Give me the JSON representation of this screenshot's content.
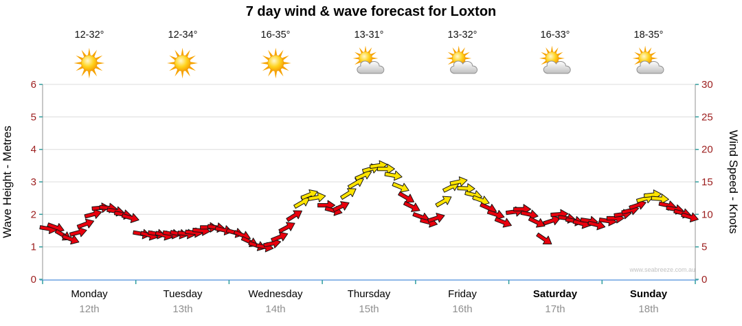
{
  "title": "7 day wind & wave forecast for Loxton",
  "watermark": "www.seabreeze.com.au",
  "axes": {
    "left_label": "Wave Height - Metres",
    "right_label": "Wind Speed - Knots",
    "left_ticks": [
      0,
      1,
      2,
      3,
      4,
      5,
      6
    ],
    "right_ticks": [
      0,
      5,
      10,
      15,
      20,
      25,
      30
    ]
  },
  "days": [
    {
      "name": "Monday",
      "date": "12th",
      "temp": "12-32°",
      "icon": "sun",
      "bold": false
    },
    {
      "name": "Tuesday",
      "date": "13th",
      "temp": "12-34°",
      "icon": "sun",
      "bold": false
    },
    {
      "name": "Wednesday",
      "date": "14th",
      "temp": "16-35°",
      "icon": "sun",
      "bold": false
    },
    {
      "name": "Thursday",
      "date": "15th",
      "temp": "13-31°",
      "icon": "sun-cloud",
      "bold": false
    },
    {
      "name": "Friday",
      "date": "16th",
      "temp": "13-32°",
      "icon": "sun-cloud",
      "bold": false
    },
    {
      "name": "Saturday",
      "date": "17th",
      "temp": "16-33°",
      "icon": "sun-cloud",
      "bold": true
    },
    {
      "name": "Sunday",
      "date": "18th",
      "temp": "18-35°",
      "icon": "sun-cloud",
      "bold": true
    }
  ],
  "colors": {
    "red": "#e8000d",
    "yellow": "#ffe400",
    "grid": "#dcdcdc",
    "axis_text": "#9b1c1c",
    "date_text": "#8f8f8f",
    "baseline": "#8fb8e8",
    "tick": "#2f9e9e",
    "spine": "#909090"
  },
  "chart_data": {
    "type": "scatter",
    "marker": "wind-direction-arrow",
    "title": "7 day wind & wave forecast for Loxton",
    "categories": [
      "Monday 12th",
      "Tuesday 13th",
      "Wednesday 14th",
      "Thursday 15th",
      "Friday 16th",
      "Saturday 17th",
      "Sunday 18th"
    ],
    "x_unit": "days (0 = start of Monday, 7 = end of Sunday)",
    "x_range": [
      0,
      7
    ],
    "left_axis": {
      "label": "Wave Height - Metres",
      "range": [
        0,
        6
      ],
      "ticks": [
        0,
        1,
        2,
        3,
        4,
        5,
        6
      ]
    },
    "right_axis": {
      "label": "Wind Speed - Knots",
      "range": [
        0,
        30
      ],
      "ticks": [
        0,
        5,
        10,
        15,
        20,
        25,
        30
      ]
    },
    "legend": "arrow color: red = lighter winds (< ~12 knots), yellow = stronger winds (~12+ knots)",
    "points_format": [
      "day_fraction",
      "wind_speed_knots",
      "arrow_rotation_deg",
      "color_code (r=red, y=yellow)"
    ],
    "points": [
      [
        0.06,
        7.8,
        10,
        "r"
      ],
      [
        0.14,
        8.0,
        20,
        "r"
      ],
      [
        0.22,
        6.8,
        30,
        "r"
      ],
      [
        0.3,
        6.2,
        20,
        "r"
      ],
      [
        0.38,
        7.2,
        -15,
        "r"
      ],
      [
        0.46,
        8.5,
        -20,
        "r"
      ],
      [
        0.54,
        10.0,
        -15,
        "r"
      ],
      [
        0.62,
        11.0,
        -5,
        "r"
      ],
      [
        0.7,
        11.0,
        5,
        "r"
      ],
      [
        0.78,
        10.5,
        10,
        "r"
      ],
      [
        0.86,
        10.0,
        10,
        "r"
      ],
      [
        0.94,
        9.5,
        15,
        "r"
      ],
      [
        1.06,
        7.0,
        10,
        "r"
      ],
      [
        1.14,
        6.8,
        15,
        "r"
      ],
      [
        1.22,
        7.0,
        10,
        "r"
      ],
      [
        1.3,
        6.8,
        15,
        "r"
      ],
      [
        1.38,
        7.0,
        10,
        "r"
      ],
      [
        1.46,
        7.0,
        12,
        "r"
      ],
      [
        1.54,
        7.0,
        8,
        "r"
      ],
      [
        1.62,
        7.2,
        5,
        "r"
      ],
      [
        1.7,
        7.5,
        5,
        "r"
      ],
      [
        1.78,
        8.0,
        0,
        "r"
      ],
      [
        1.86,
        8.0,
        8,
        "r"
      ],
      [
        1.94,
        7.6,
        12,
        "r"
      ],
      [
        2.06,
        7.2,
        15,
        "r"
      ],
      [
        2.14,
        6.8,
        22,
        "r"
      ],
      [
        2.22,
        5.8,
        25,
        "r"
      ],
      [
        2.3,
        5.2,
        18,
        "r"
      ],
      [
        2.38,
        5.0,
        10,
        "r"
      ],
      [
        2.46,
        5.5,
        -12,
        "r"
      ],
      [
        2.54,
        6.5,
        -22,
        "r"
      ],
      [
        2.62,
        8.0,
        -28,
        "r"
      ],
      [
        2.7,
        9.8,
        -32,
        "r"
      ],
      [
        2.78,
        11.8,
        -30,
        "y"
      ],
      [
        2.86,
        13.0,
        -22,
        "y"
      ],
      [
        2.94,
        12.6,
        -10,
        "y"
      ],
      [
        3.04,
        11.4,
        0,
        "r"
      ],
      [
        3.12,
        10.6,
        15,
        "r"
      ],
      [
        3.2,
        11.2,
        -25,
        "r"
      ],
      [
        3.28,
        13.2,
        -32,
        "y"
      ],
      [
        3.36,
        14.8,
        -30,
        "y"
      ],
      [
        3.44,
        16.0,
        -24,
        "y"
      ],
      [
        3.52,
        17.0,
        -16,
        "y"
      ],
      [
        3.6,
        17.5,
        -8,
        "y"
      ],
      [
        3.68,
        17.0,
        0,
        "y"
      ],
      [
        3.76,
        16.0,
        10,
        "y"
      ],
      [
        3.84,
        14.2,
        22,
        "y"
      ],
      [
        3.9,
        12.6,
        30,
        "r"
      ],
      [
        3.96,
        11.2,
        26,
        "r"
      ],
      [
        4.06,
        9.6,
        20,
        "r"
      ],
      [
        4.14,
        8.8,
        14,
        "r"
      ],
      [
        4.22,
        9.4,
        -18,
        "r"
      ],
      [
        4.3,
        12.0,
        -30,
        "y"
      ],
      [
        4.38,
        14.2,
        -26,
        "y"
      ],
      [
        4.46,
        15.0,
        -12,
        "y"
      ],
      [
        4.54,
        14.0,
        2,
        "y"
      ],
      [
        4.62,
        13.0,
        14,
        "y"
      ],
      [
        4.7,
        12.2,
        20,
        "y"
      ],
      [
        4.78,
        11.0,
        24,
        "r"
      ],
      [
        4.86,
        10.0,
        18,
        "r"
      ],
      [
        4.94,
        8.8,
        22,
        "r"
      ],
      [
        5.06,
        10.4,
        -8,
        "r"
      ],
      [
        5.14,
        10.8,
        0,
        "r"
      ],
      [
        5.22,
        10.0,
        12,
        "r"
      ],
      [
        5.3,
        8.8,
        26,
        "r"
      ],
      [
        5.38,
        6.2,
        34,
        "r"
      ],
      [
        5.46,
        9.0,
        -18,
        "r"
      ],
      [
        5.54,
        10.0,
        -4,
        "r"
      ],
      [
        5.62,
        9.4,
        8,
        "r"
      ],
      [
        5.7,
        9.0,
        10,
        "r"
      ],
      [
        5.78,
        8.6,
        14,
        "r"
      ],
      [
        5.86,
        9.0,
        8,
        "r"
      ],
      [
        5.94,
        8.4,
        14,
        "r"
      ],
      [
        6.06,
        9.0,
        8,
        "r"
      ],
      [
        6.14,
        9.4,
        0,
        "r"
      ],
      [
        6.22,
        10.0,
        -8,
        "r"
      ],
      [
        6.3,
        10.6,
        -14,
        "r"
      ],
      [
        6.38,
        11.4,
        -18,
        "r"
      ],
      [
        6.46,
        12.4,
        -16,
        "y"
      ],
      [
        6.54,
        13.0,
        -6,
        "y"
      ],
      [
        6.62,
        12.4,
        4,
        "y"
      ],
      [
        6.7,
        11.4,
        12,
        "r"
      ],
      [
        6.78,
        10.8,
        10,
        "r"
      ],
      [
        6.86,
        10.2,
        14,
        "r"
      ],
      [
        6.94,
        9.6,
        16,
        "r"
      ]
    ]
  }
}
